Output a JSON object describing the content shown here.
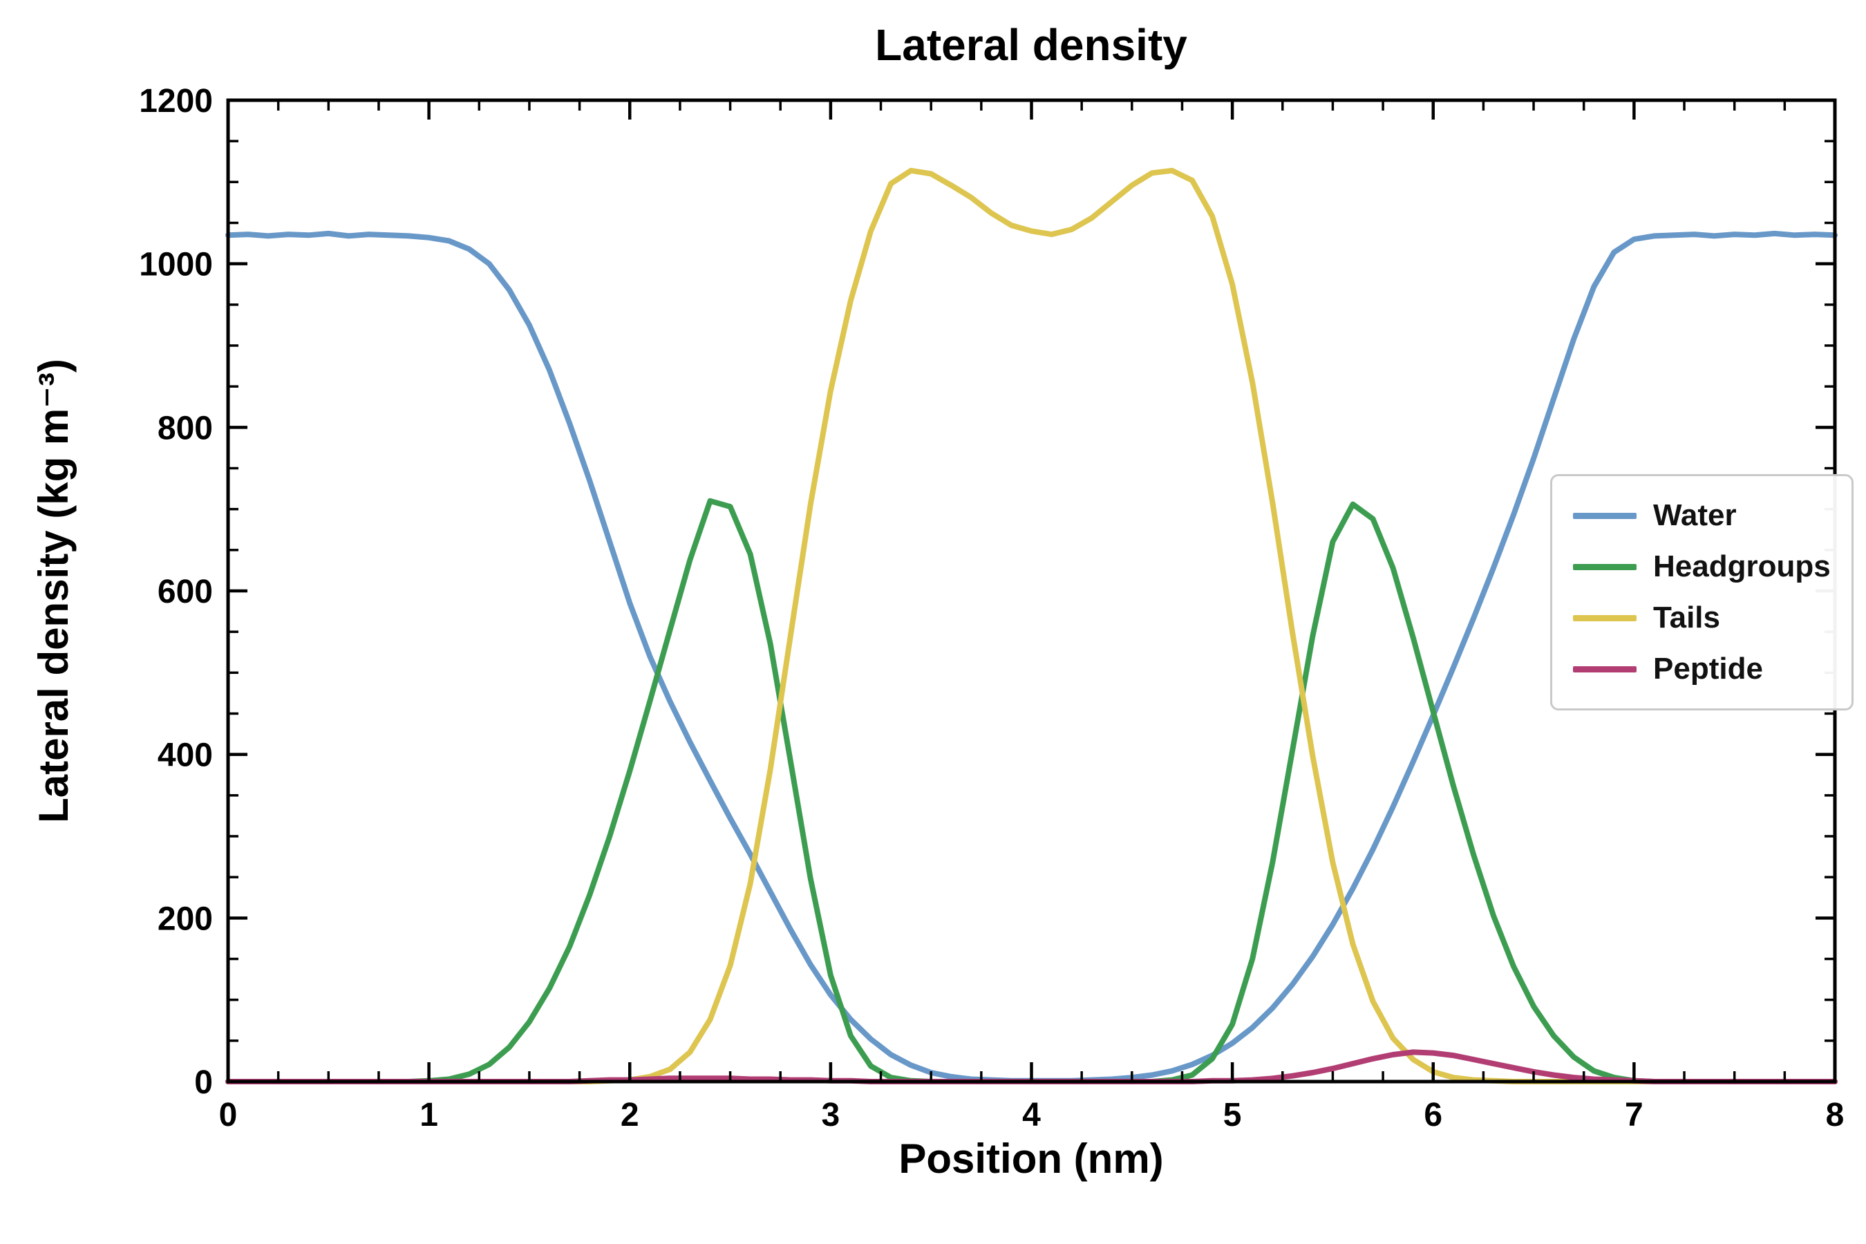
{
  "chart_data": {
    "type": "line",
    "title": "Lateral density",
    "xlabel": "Position (nm)",
    "ylabel": "Lateral density (kg m⁻³)",
    "xlim": [
      0,
      8
    ],
    "ylim": [
      0,
      1200
    ],
    "x_ticks": [
      0,
      1,
      2,
      3,
      4,
      5,
      6,
      7,
      8
    ],
    "y_ticks": [
      0,
      200,
      400,
      600,
      800,
      1000,
      1200
    ],
    "x_minor_step": 0.25,
    "y_minor_step": 50,
    "grid": false,
    "legend_position": "center-right",
    "x": [
      0,
      0.1,
      0.2,
      0.3,
      0.4,
      0.5,
      0.6,
      0.7,
      0.8,
      0.9,
      1.0,
      1.1,
      1.2,
      1.3,
      1.4,
      1.5,
      1.6,
      1.7,
      1.8,
      1.9,
      2.0,
      2.1,
      2.2,
      2.3,
      2.4,
      2.5,
      2.6,
      2.7,
      2.8,
      2.9,
      3.0,
      3.1,
      3.2,
      3.3,
      3.4,
      3.5,
      3.6,
      3.7,
      3.8,
      3.9,
      4.0,
      4.1,
      4.2,
      4.3,
      4.4,
      4.5,
      4.6,
      4.7,
      4.8,
      4.9,
      5.0,
      5.1,
      5.2,
      5.3,
      5.4,
      5.5,
      5.6,
      5.7,
      5.8,
      5.9,
      6.0,
      6.1,
      6.2,
      6.3,
      6.4,
      6.5,
      6.6,
      6.7,
      6.8,
      6.9,
      7.0,
      7.1,
      7.2,
      7.3,
      7.4,
      7.5,
      7.6,
      7.7,
      7.8,
      7.9,
      8.0
    ],
    "series": [
      {
        "name": "Water",
        "color": "#6898c8",
        "values": [
          1035,
          1036,
          1034,
          1036,
          1035,
          1037,
          1034,
          1036,
          1035,
          1034,
          1032,
          1028,
          1018,
          1000,
          968,
          925,
          870,
          805,
          735,
          660,
          585,
          520,
          465,
          415,
          368,
          322,
          278,
          232,
          186,
          143,
          106,
          76,
          52,
          33,
          20,
          11,
          6,
          3,
          2,
          1,
          1,
          1,
          1,
          2,
          3,
          5,
          8,
          13,
          21,
          32,
          47,
          66,
          90,
          119,
          153,
          192,
          236,
          284,
          336,
          391,
          448,
          506,
          566,
          628,
          693,
          762,
          835,
          908,
          972,
          1014,
          1030,
          1034,
          1035,
          1036,
          1034,
          1036,
          1035,
          1037,
          1035,
          1036,
          1035
        ]
      },
      {
        "name": "Headgroups",
        "color": "#3c9d50",
        "values": [
          0,
          0,
          0,
          0,
          0,
          0,
          0,
          0,
          0,
          0,
          1,
          3,
          9,
          21,
          42,
          73,
          114,
          165,
          228,
          300,
          380,
          465,
          552,
          638,
          710,
          703,
          645,
          535,
          392,
          248,
          130,
          56,
          19,
          5,
          1,
          0,
          0,
          0,
          0,
          0,
          0,
          0,
          0,
          0,
          0,
          0,
          0,
          2,
          8,
          28,
          70,
          150,
          268,
          406,
          545,
          660,
          706,
          688,
          628,
          543,
          452,
          362,
          278,
          203,
          141,
          92,
          56,
          30,
          13,
          5,
          1,
          0,
          0,
          0,
          0,
          0,
          0,
          0,
          0,
          0,
          0
        ]
      },
      {
        "name": "Tails",
        "color": "#ddc550",
        "values": [
          0,
          0,
          0,
          0,
          0,
          0,
          0,
          0,
          0,
          0,
          0,
          0,
          0,
          0,
          0,
          0,
          0,
          0,
          0,
          1,
          2,
          6,
          15,
          36,
          76,
          142,
          242,
          382,
          545,
          706,
          845,
          955,
          1040,
          1098,
          1114,
          1110,
          1096,
          1081,
          1062,
          1047,
          1040,
          1036,
          1042,
          1056,
          1076,
          1096,
          1111,
          1114,
          1102,
          1058,
          975,
          855,
          708,
          548,
          398,
          268,
          168,
          98,
          53,
          27,
          12,
          5,
          2,
          1,
          0,
          0,
          0,
          0,
          0,
          0,
          0,
          0,
          0,
          0,
          0,
          0,
          0,
          0,
          0,
          0,
          0
        ]
      },
      {
        "name": "Peptide",
        "color": "#b13d73",
        "values": [
          0,
          0,
          0,
          0,
          0,
          0,
          0,
          0,
          0,
          0,
          0,
          0,
          0,
          0,
          0,
          0,
          0,
          0,
          1,
          2,
          2,
          3,
          4,
          4,
          4,
          4,
          3,
          3,
          2,
          2,
          1,
          1,
          0,
          0,
          0,
          0,
          0,
          0,
          0,
          0,
          0,
          0,
          0,
          0,
          0,
          0,
          0,
          0,
          0,
          1,
          1,
          2,
          4,
          7,
          11,
          16,
          22,
          28,
          33,
          36,
          35,
          32,
          27,
          22,
          17,
          12,
          8,
          5,
          3,
          2,
          1,
          0,
          0,
          0,
          0,
          0,
          0,
          0,
          0,
          0,
          0
        ]
      }
    ]
  }
}
